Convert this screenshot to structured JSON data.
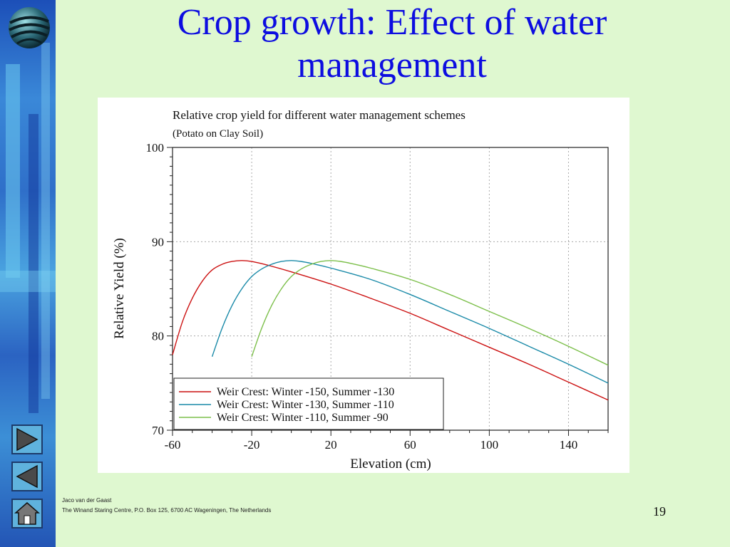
{
  "slide": {
    "title": "Crop growth: Effect of water management",
    "footer_author": "Jaco van der Gaast",
    "footer_address": "The Winand Staring Centre, P.O. Box 125, 6700 AC Wageningen, The Netherlands",
    "page_number": "19"
  },
  "nav": {
    "next_icon": "triangle-right-icon",
    "prev_icon": "triangle-left-icon",
    "home_icon": "house-icon"
  },
  "colors": {
    "title": "#0d0de0",
    "background": "#dff8d0",
    "series": [
      "#cc1111",
      "#1a8aa8",
      "#7cbf4a"
    ]
  },
  "chart_data": {
    "type": "line",
    "title": "Relative crop yield for different water management schemes",
    "subtitle": "(Potato on Clay Soil)",
    "xlabel": "Elevation (cm)",
    "ylabel": "Relative Yield (%)",
    "xlim": [
      -60,
      160
    ],
    "ylim": [
      70,
      100
    ],
    "xticks": [
      -60,
      -20,
      20,
      60,
      100,
      140
    ],
    "yticks": [
      70,
      80,
      90,
      100
    ],
    "grid": true,
    "legend_position": "bottom-left",
    "series": [
      {
        "name": "Weir Crest: Winter -150, Summer -130",
        "color": "#cc1111",
        "x": [
          -60,
          -55,
          -50,
          -45,
          -40,
          -35,
          -30,
          -25,
          -20,
          -10,
          0,
          20,
          40,
          60,
          80,
          100,
          120,
          140,
          160
        ],
        "y": [
          78,
          81.5,
          84,
          85.8,
          87,
          87.6,
          87.9,
          88,
          87.9,
          87.4,
          86.8,
          85.5,
          84,
          82.4,
          80.6,
          78.8,
          77,
          75.1,
          73.2
        ]
      },
      {
        "name": "Weir Crest: Winter -130, Summer -110",
        "color": "#1a8aa8",
        "x": [
          -40,
          -35,
          -30,
          -25,
          -20,
          -15,
          -10,
          -5,
          0,
          5,
          10,
          20,
          40,
          60,
          80,
          100,
          120,
          140,
          160
        ],
        "y": [
          77.8,
          80.8,
          83.2,
          85,
          86.3,
          87.1,
          87.6,
          87.9,
          88,
          87.9,
          87.7,
          87.2,
          86,
          84.4,
          82.6,
          80.8,
          78.9,
          77,
          75
        ]
      },
      {
        "name": "Weir Crest: Winter -110, Summer -90",
        "color": "#7cbf4a",
        "x": [
          -20,
          -15,
          -10,
          -5,
          0,
          5,
          10,
          15,
          20,
          25,
          30,
          40,
          60,
          80,
          100,
          120,
          140,
          160
        ],
        "y": [
          77.8,
          80.8,
          83.2,
          85,
          86.3,
          87.1,
          87.6,
          87.9,
          88,
          87.9,
          87.7,
          87.2,
          86,
          84.4,
          82.6,
          80.8,
          78.9,
          76.9
        ]
      }
    ]
  }
}
